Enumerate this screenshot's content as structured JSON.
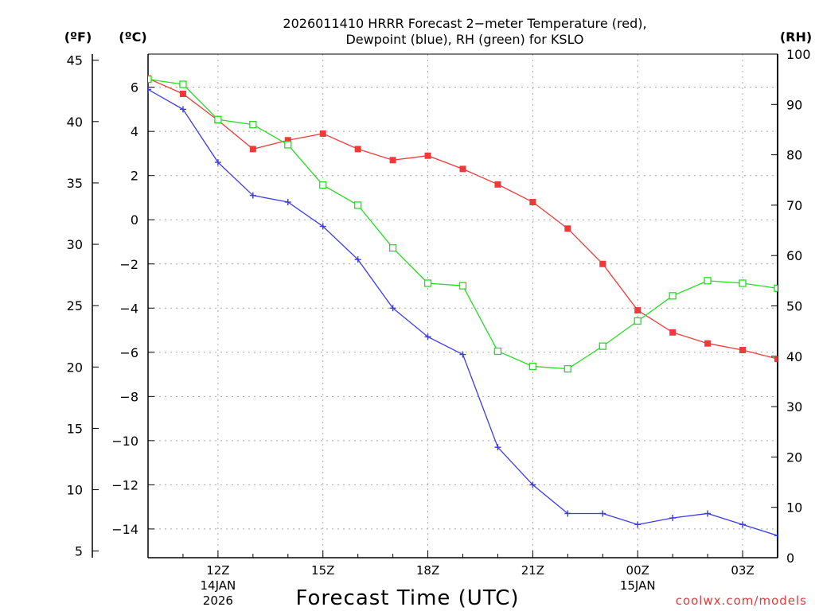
{
  "chart_data": {
    "type": "line",
    "title_line1": "2026011410 HRRR Forecast 2−meter Temperature (red),",
    "title_line2": "Dewpoint (blue), RH (green) for KSLO",
    "units": {
      "fahrenheit": "(ºF)",
      "celsius": "(ºC)",
      "rh": "(RH)"
    },
    "xlabel": "Forecast Time (UTC)",
    "credit": "coolwx.com/models",
    "x_range": [
      10,
      28
    ],
    "x_ticks": [
      {
        "x": 12,
        "label": "12Z",
        "date1": "14JAN",
        "date2": "2026"
      },
      {
        "x": 15,
        "label": "15Z",
        "date1": "",
        "date2": ""
      },
      {
        "x": 18,
        "label": "18Z",
        "date1": "",
        "date2": ""
      },
      {
        "x": 21,
        "label": "21Z",
        "date1": "",
        "date2": ""
      },
      {
        "x": 24,
        "label": "00Z",
        "date1": "15JAN",
        "date2": ""
      },
      {
        "x": 27,
        "label": "03Z",
        "date1": "",
        "date2": ""
      }
    ],
    "celsius_axis": {
      "min": -15.3,
      "max": 7.5,
      "ticks": [
        6,
        4,
        2,
        0,
        -2,
        -4,
        -6,
        -8,
        -10,
        -12,
        -14
      ]
    },
    "fahrenheit_axis": {
      "min": 4.46,
      "max": 45.5,
      "ticks": [
        45,
        40,
        35,
        30,
        25,
        20,
        15,
        10,
        5
      ]
    },
    "rh_axis": {
      "min": 0,
      "max": 100,
      "ticks": [
        100,
        90,
        80,
        70,
        60,
        50,
        40,
        30,
        20,
        10,
        0
      ]
    },
    "x": [
      10,
      11,
      12,
      13,
      14,
      15,
      16,
      17,
      18,
      19,
      20,
      21,
      22,
      23,
      24,
      25,
      26,
      27,
      28
    ],
    "series": [
      {
        "name": "Temperature",
        "axis": "celsius",
        "color": "#f03a3a",
        "marker": "filled-square",
        "values": [
          6.4,
          5.7,
          4.5,
          3.2,
          3.6,
          3.9,
          3.2,
          2.7,
          2.9,
          2.3,
          1.6,
          0.8,
          -0.4,
          -2.0,
          -4.1,
          -5.1,
          -5.6,
          -5.9,
          -6.3
        ]
      },
      {
        "name": "Dewpoint",
        "axis": "celsius",
        "color": "#3a3aee",
        "marker": "plus",
        "values": [
          5.9,
          5.0,
          2.6,
          1.1,
          0.8,
          -0.3,
          -1.8,
          -4.0,
          -5.3,
          -6.1,
          -10.3,
          -12.0,
          -13.3,
          -13.3,
          -13.8,
          -13.5,
          -13.3,
          -13.8,
          -14.3
        ]
      },
      {
        "name": "RH",
        "axis": "rh",
        "color": "#22dd22",
        "marker": "open-square",
        "values": [
          95,
          94,
          87,
          86,
          82,
          74,
          70,
          61.5,
          54.5,
          54,
          41,
          38,
          37.5,
          42,
          47,
          52,
          55,
          54.5,
          53.5
        ]
      }
    ]
  }
}
